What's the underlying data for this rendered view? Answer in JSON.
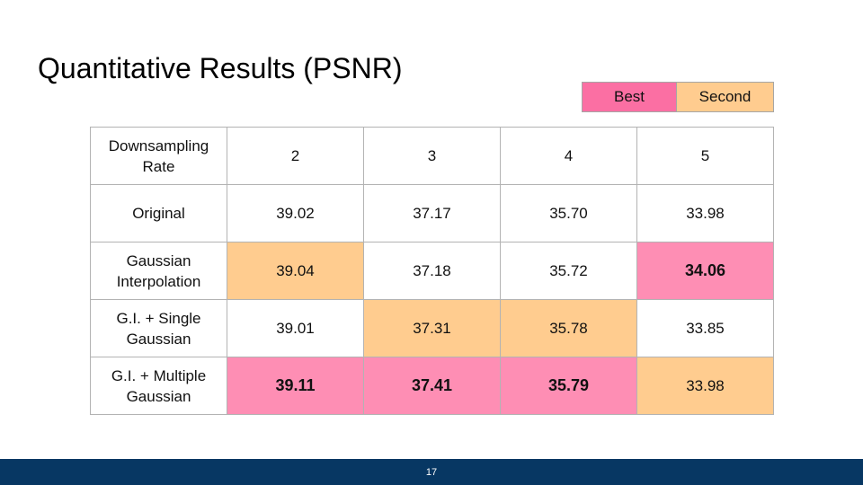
{
  "slide": {
    "title": "Quantitative Results (PSNR)",
    "page_number": "17"
  },
  "colors": {
    "best": "#fe8eb4",
    "second": "#ffcc8f",
    "plain": "#ffffff",
    "legend_best": "#fb6fa3",
    "footer": "#073763"
  },
  "legend": {
    "best_label": "Best",
    "second_label": "Second"
  },
  "table": {
    "header": {
      "label": "Downsampling Rate",
      "columns": [
        "2",
        "3",
        "4",
        "5"
      ]
    },
    "rows": [
      {
        "label": "Original",
        "values": [
          "39.02",
          "37.17",
          "35.70",
          "33.98"
        ],
        "rank": [
          "",
          "",
          "",
          ""
        ]
      },
      {
        "label": "Gaussian Interpolation",
        "values": [
          "39.04",
          "37.18",
          "35.72",
          "34.06"
        ],
        "rank": [
          "second",
          "",
          "",
          "best"
        ]
      },
      {
        "label": "G.I. + Single Gaussian",
        "values": [
          "39.01",
          "37.31",
          "35.78",
          "33.85"
        ],
        "rank": [
          "",
          "second",
          "second",
          ""
        ]
      },
      {
        "label": "G.I. + Multiple Gaussian",
        "values": [
          "39.11",
          "37.41",
          "35.79",
          "33.98"
        ],
        "rank": [
          "best",
          "best",
          "best",
          "second"
        ]
      }
    ]
  }
}
